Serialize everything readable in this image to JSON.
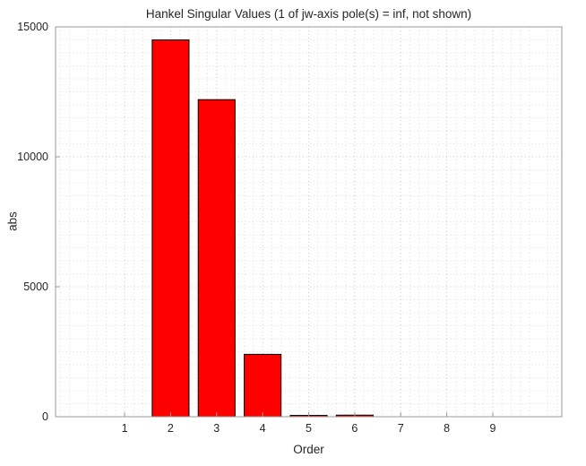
{
  "figure": {
    "background": "#ffffff"
  },
  "chart_data": {
    "type": "bar",
    "title": "Hankel Singular Values (1 of jw-axis pole(s) = inf, not shown)",
    "xlabel": "Order",
    "ylabel": "abs",
    "categories": [
      1,
      2,
      3,
      4,
      5,
      6,
      7,
      8,
      9
    ],
    "values": [
      0,
      14500,
      12200,
      2400,
      50,
      60,
      0,
      0,
      0
    ],
    "xlim": [
      -0.5,
      10.5
    ],
    "ylim": [
      0,
      15000
    ],
    "yticks": [
      0,
      5000,
      10000,
      15000
    ],
    "ytick_labels": [
      "0",
      "5000",
      "10000",
      "15000"
    ],
    "xtick_labels": [
      "1",
      "2",
      "3",
      "4",
      "5",
      "6",
      "7",
      "8",
      "9"
    ],
    "bar_width": 0.8,
    "bar_color": "#ff0000",
    "bar_edge_color": "#000000",
    "axes_color": "#999999",
    "text_color": "#262626",
    "major_grid_color": "#c8c8c8",
    "minor_grid_color": "#dedede",
    "grid": "on",
    "grid_minor": "on",
    "grid_style": "dotted",
    "legend": "none"
  }
}
